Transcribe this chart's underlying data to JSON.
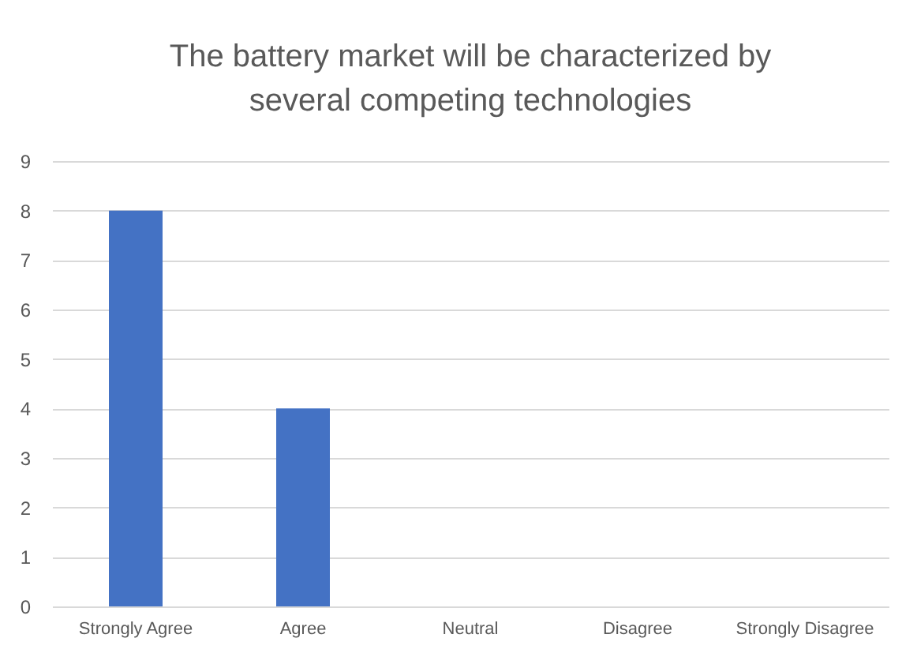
{
  "chart_data": {
    "type": "bar",
    "title": "The battery market will be characterized by\nseveral competing technologies",
    "categories": [
      "Strongly Agree",
      "Agree",
      "Neutral",
      "Disagree",
      "Strongly Disagree"
    ],
    "values": [
      8,
      4,
      0,
      0,
      0
    ],
    "color": "#4472c4",
    "ylim": [
      0,
      9
    ],
    "yticks": [
      0,
      1,
      2,
      3,
      4,
      5,
      6,
      7,
      8,
      9
    ],
    "grid": "y"
  }
}
